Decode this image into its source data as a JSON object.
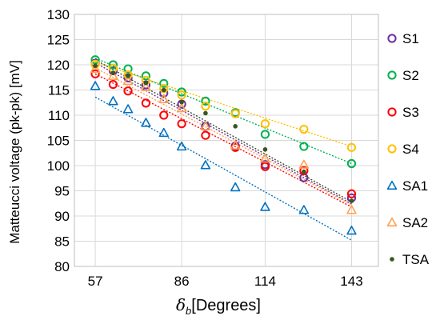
{
  "chart_data": {
    "type": "scatter",
    "xlabel_symbol": "δ",
    "xlabel_subscript": "b",
    "xlabel_text": "[Degrees]",
    "ylabel": "Matteucci voltage (pk-pk) [mV]",
    "xlim": [
      50,
      152
    ],
    "ylim": [
      80,
      130
    ],
    "x_ticks": [
      57,
      86,
      114,
      143
    ],
    "y_tick_labels": [
      "130",
      "125",
      "120",
      "115",
      "110",
      "105",
      "100",
      "95",
      "90",
      "85",
      "80"
    ],
    "grid": true,
    "legend_position": "right",
    "series": [
      {
        "name": "S1",
        "color": "#7030a0",
        "marker": "circle",
        "x": [
          57,
          63,
          68,
          74,
          80,
          86,
          94,
          104,
          114,
          127,
          143
        ],
        "y": [
          120.3,
          118.8,
          117.4,
          116.0,
          114.4,
          112.2,
          107.8,
          103.9,
          100.2,
          97.6,
          93.6
        ],
        "trend": [
          [
            57,
            120.4
          ],
          [
            143,
            92.4
          ]
        ]
      },
      {
        "name": "S2",
        "color": "#00b050",
        "marker": "circle",
        "x": [
          57,
          63,
          68,
          74,
          80,
          86,
          94,
          104,
          114,
          127,
          143
        ],
        "y": [
          121.0,
          120.0,
          119.2,
          117.8,
          116.3,
          114.6,
          112.8,
          110.5,
          106.2,
          103.8,
          100.4
        ],
        "trend": [
          [
            57,
            121.3
          ],
          [
            143,
            100.4
          ]
        ]
      },
      {
        "name": "S3",
        "color": "#ff0000",
        "marker": "circle",
        "x": [
          57,
          63,
          68,
          74,
          80,
          86,
          94,
          104,
          114,
          127,
          143
        ],
        "y": [
          118.2,
          116.1,
          114.8,
          112.4,
          110.0,
          108.3,
          106.0,
          103.6,
          99.8,
          99.0,
          94.4
        ],
        "trend": [
          [
            57,
            118.2
          ],
          [
            143,
            91.8
          ]
        ]
      },
      {
        "name": "S4",
        "color": "#ffc000",
        "marker": "circle",
        "x": [
          57,
          63,
          68,
          74,
          80,
          86,
          94,
          104,
          114,
          127,
          143
        ],
        "y": [
          120.1,
          119.3,
          118.0,
          116.9,
          115.3,
          114.0,
          111.8,
          110.3,
          108.3,
          107.2,
          103.6
        ],
        "trend": [
          [
            57,
            120.5
          ],
          [
            143,
            103.8
          ]
        ]
      },
      {
        "name": "SA1",
        "color": "#0070c0",
        "marker": "triangle",
        "x": [
          57,
          63,
          68,
          74,
          80,
          86,
          94,
          104,
          114,
          127,
          143
        ],
        "y": [
          115.8,
          112.8,
          111.2,
          108.5,
          106.5,
          103.8,
          100.1,
          95.7,
          91.8,
          91.2,
          87.1
        ],
        "trend": [
          [
            57,
            113.6
          ],
          [
            143,
            85.2
          ]
        ]
      },
      {
        "name": "SA2",
        "color": "#ffa050",
        "marker": "triangle",
        "x": [
          57,
          63,
          68,
          74,
          80,
          86,
          94,
          104,
          114,
          127,
          143
        ],
        "y": [
          119.2,
          117.8,
          116.8,
          115.6,
          113.2,
          111.4,
          107.8,
          104.0,
          101.4,
          100.2,
          91.2
        ],
        "trend": [
          [
            57,
            119.4
          ],
          [
            143,
            92.2
          ]
        ]
      },
      {
        "name": "TSA",
        "color": "#385723",
        "marker": "dot",
        "x": [
          57,
          63,
          68,
          74,
          80,
          86,
          94,
          104,
          114,
          127,
          143
        ],
        "y": [
          119.8,
          118.4,
          117.8,
          116.4,
          115.0,
          112.6,
          110.4,
          107.8,
          103.2,
          98.8,
          93.0
        ],
        "trend": [
          [
            57,
            121.0
          ],
          [
            143,
            92.8
          ]
        ]
      }
    ]
  }
}
